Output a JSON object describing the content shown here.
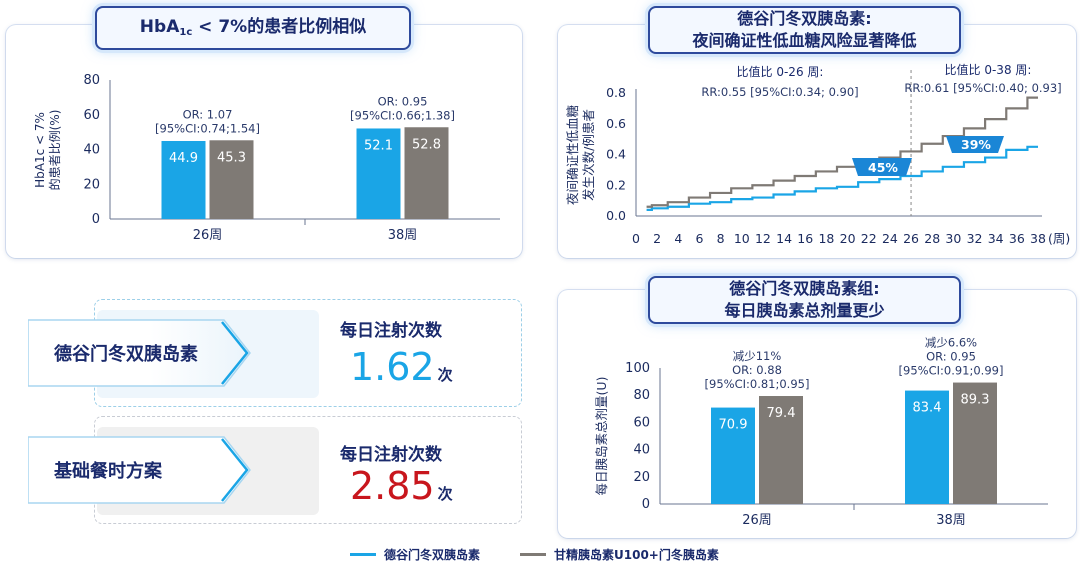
{
  "panels": {
    "hba1c": {
      "title_main": "HbA",
      "title_sub": "1c",
      "title_rest": " < 7%的患者比例相似"
    },
    "hypo": {
      "title_line1": "德谷门冬双胰岛素:",
      "title_line2": "夜间确证性低血糖风险显著降低"
    },
    "dose": {
      "title_line1": "德谷门冬双胰岛素组:",
      "title_line2": "每日胰岛素总剂量更少"
    }
  },
  "injections": {
    "degludec_aspart": {
      "label": "德谷门冬双胰岛素",
      "title": "每日注射次数",
      "value": "1.62",
      "unit": "次"
    },
    "basal_bolus": {
      "label": "基础餐时方案",
      "title": "每日注射次数",
      "value": "2.85",
      "unit": "次"
    }
  },
  "legend": [
    {
      "label": "德谷门冬双胰岛素",
      "color": "#1aa5e6"
    },
    {
      "label": "甘精胰岛素U100+门冬胰岛素",
      "color": "#7f7a75"
    }
  ],
  "chart_data": [
    {
      "type": "bar",
      "ylabel_line1": "HbA1c < 7%",
      "ylabel_line2": "的患者比例(%)",
      "ylim": [
        0,
        80
      ],
      "yticks": [
        "0",
        "20",
        "40",
        "60",
        "80"
      ],
      "categories": [
        "26周",
        "38周"
      ],
      "series": [
        {
          "color": "#1aa5e6",
          "values": [
            44.9,
            52.1
          ],
          "labels": [
            "44.9",
            "52.1"
          ]
        },
        {
          "color": "#7f7a75",
          "values": [
            45.3,
            52.8
          ],
          "labels": [
            "45.3",
            "52.8"
          ]
        }
      ],
      "annotations": [
        {
          "lines": [
            "OR: 1.07",
            "[95%CI:0.74;1.54]"
          ]
        },
        {
          "lines": [
            "OR: 0.95",
            "[95%CI:0.66;1.38]"
          ]
        }
      ]
    },
    {
      "type": "line",
      "ylabel_line1": "夜间确证性低血糖",
      "ylabel_line2": "发生次数/例患者",
      "xlim": [
        0,
        38
      ],
      "ylim": [
        0,
        0.8
      ],
      "xticks": [
        "0",
        "2",
        "4",
        "6",
        "8",
        "10",
        "12",
        "14",
        "16",
        "18",
        "20",
        "22",
        "24",
        "26",
        "28",
        "30",
        "32",
        "34",
        "36",
        "38"
      ],
      "x_unit": "(周)",
      "yticks": [
        "0.0",
        "0.2",
        "0.4",
        "0.6",
        "0.8"
      ],
      "series": [
        {
          "color": "#1aa5e6",
          "points": [
            [
              1,
              0.04
            ],
            [
              2,
              0.05
            ],
            [
              4,
              0.06
            ],
            [
              6,
              0.08
            ],
            [
              8,
              0.09
            ],
            [
              10,
              0.11
            ],
            [
              12,
              0.12
            ],
            [
              14,
              0.14
            ],
            [
              16,
              0.16
            ],
            [
              18,
              0.18
            ],
            [
              20,
              0.19
            ],
            [
              22,
              0.22
            ],
            [
              24,
              0.24
            ],
            [
              26,
              0.26
            ],
            [
              28,
              0.29
            ],
            [
              30,
              0.32
            ],
            [
              32,
              0.35
            ],
            [
              34,
              0.38
            ],
            [
              36,
              0.43
            ],
            [
              38,
              0.45
            ]
          ]
        },
        {
          "color": "#7f7a75",
          "points": [
            [
              1,
              0.06
            ],
            [
              2,
              0.07
            ],
            [
              4,
              0.09
            ],
            [
              6,
              0.12
            ],
            [
              8,
              0.15
            ],
            [
              10,
              0.18
            ],
            [
              12,
              0.2
            ],
            [
              14,
              0.23
            ],
            [
              16,
              0.26
            ],
            [
              18,
              0.29
            ],
            [
              20,
              0.32
            ],
            [
              22,
              0.35
            ],
            [
              24,
              0.38
            ],
            [
              26,
              0.42
            ],
            [
              28,
              0.47
            ],
            [
              30,
              0.52
            ],
            [
              32,
              0.57
            ],
            [
              34,
              0.63
            ],
            [
              36,
              0.7
            ],
            [
              38,
              0.77
            ]
          ]
        }
      ],
      "divider_x": 26,
      "annotations": [
        {
          "title": "比值比 0-26 周:",
          "text": "RR:0.55 [95%CI:0.34; 0.90]",
          "badge": "45%"
        },
        {
          "title": "比值比 0-38 周:",
          "text": "RR:0.61 [95%CI:0.40; 0.93]",
          "badge": "39%"
        }
      ]
    },
    {
      "type": "bar",
      "ylabel": "每日胰岛素总剂量(U)",
      "ylim": [
        0,
        100
      ],
      "yticks": [
        "0",
        "20",
        "40",
        "60",
        "80",
        "100"
      ],
      "categories": [
        "26周",
        "38周"
      ],
      "series": [
        {
          "color": "#1aa5e6",
          "values": [
            70.9,
            83.4
          ],
          "labels": [
            "70.9",
            "83.4"
          ]
        },
        {
          "color": "#7f7a75",
          "values": [
            79.4,
            89.3
          ],
          "labels": [
            "79.4",
            "89.3"
          ]
        }
      ],
      "annotations": [
        {
          "lines": [
            "减少11%",
            "OR: 0.88",
            "[95%CI:0.81;0.95]"
          ]
        },
        {
          "lines": [
            "减少6.6%",
            "OR: 0.95",
            "[95%CI:0.91;0.99]"
          ]
        }
      ]
    }
  ]
}
